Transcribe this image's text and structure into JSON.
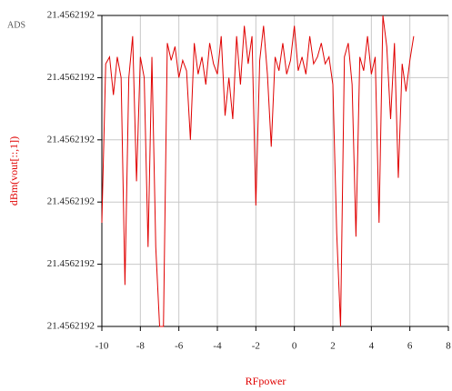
{
  "app_label": "ADS",
  "chart_data": {
    "type": "line",
    "xlabel": "RFpower",
    "ylabel": "dBm(vout[::,1])",
    "xlim": [
      -10,
      8
    ],
    "xticks": [
      -10,
      -8,
      -6,
      -4,
      -2,
      0,
      2,
      4,
      6,
      8
    ],
    "ylim": [
      21.456219155,
      21.456219245
    ],
    "yticks": [
      {
        "value": 21.456219155,
        "label": "21.4562192"
      },
      {
        "value": 21.456219173,
        "label": "21.4562192"
      },
      {
        "value": 21.456219191,
        "label": "21.4562192"
      },
      {
        "value": 21.456219209,
        "label": "21.4562192"
      },
      {
        "value": 21.456219227,
        "label": "21.4562192"
      },
      {
        "value": 21.456219245,
        "label": "21.4562192"
      }
    ],
    "grid": true,
    "series": [
      {
        "color": "#e00000",
        "x": [
          -10,
          -9.8,
          -9.6,
          -9.4,
          -9.2,
          -9.0,
          -8.8,
          -8.6,
          -8.4,
          -8.2,
          -8.0,
          -7.8,
          -7.6,
          -7.4,
          -7.2,
          -7.0,
          -6.8,
          -6.6,
          -6.4,
          -6.2,
          -6.0,
          -5.8,
          -5.6,
          -5.4,
          -5.2,
          -5.0,
          -4.8,
          -4.6,
          -4.4,
          -4.2,
          -4.0,
          -3.8,
          -3.6,
          -3.4,
          -3.2,
          -3.0,
          -2.8,
          -2.6,
          -2.4,
          -2.2,
          -2.0,
          -1.8,
          -1.6,
          -1.4,
          -1.2,
          -1.0,
          -0.8,
          -0.6,
          -0.4,
          -0.2,
          0.0,
          0.2,
          0.4,
          0.6,
          0.8,
          1.0,
          1.2,
          1.4,
          1.6,
          1.8,
          2.0,
          2.2,
          2.4,
          2.6,
          2.8,
          3.0,
          3.2,
          3.4,
          3.6,
          3.8,
          4.0,
          4.2,
          4.4,
          4.6,
          4.8,
          5.0,
          5.2,
          5.4,
          5.6,
          5.8,
          6.0,
          6.2
        ],
        "values": [
          21.456219185,
          21.456219231,
          21.456219233,
          21.456219222,
          21.456219233,
          21.456219227,
          21.456219167,
          21.456219227,
          21.456219239,
          21.456219197,
          21.456219233,
          21.456219227,
          21.456219178,
          21.456219233,
          21.456219178,
          21.456219155,
          21.456219155,
          21.456219237,
          21.456219232,
          21.456219236,
          21.456219227,
          21.456219232,
          21.456219229,
          21.456219209,
          21.456219237,
          21.456219228,
          21.456219233,
          21.456219225,
          21.456219237,
          21.456219231,
          21.456219228,
          21.456219239,
          21.456219216,
          21.456219227,
          21.456219215,
          21.456219239,
          21.456219225,
          21.456219242,
          21.456219231,
          21.456219239,
          21.45621919,
          21.456219232,
          21.456219242,
          21.456219228,
          21.456219207,
          21.456219233,
          21.456219229,
          21.456219237,
          21.456219228,
          21.456219232,
          21.456219242,
          21.456219229,
          21.456219233,
          21.456219228,
          21.456219239,
          21.456219231,
          21.456219233,
          21.456219237,
          21.456219231,
          21.456219233,
          21.456219225,
          21.456219182,
          21.456219155,
          21.456219233,
          21.456219237,
          21.456219225,
          21.456219181,
          21.456219233,
          21.456219229,
          21.456219239,
          21.456219228,
          21.456219233,
          21.456219185,
          21.456219245,
          21.456219236,
          21.456219215,
          21.456219237,
          21.456219198,
          21.456219231,
          21.456219223,
          21.456219232,
          21.456219239
        ]
      }
    ]
  }
}
